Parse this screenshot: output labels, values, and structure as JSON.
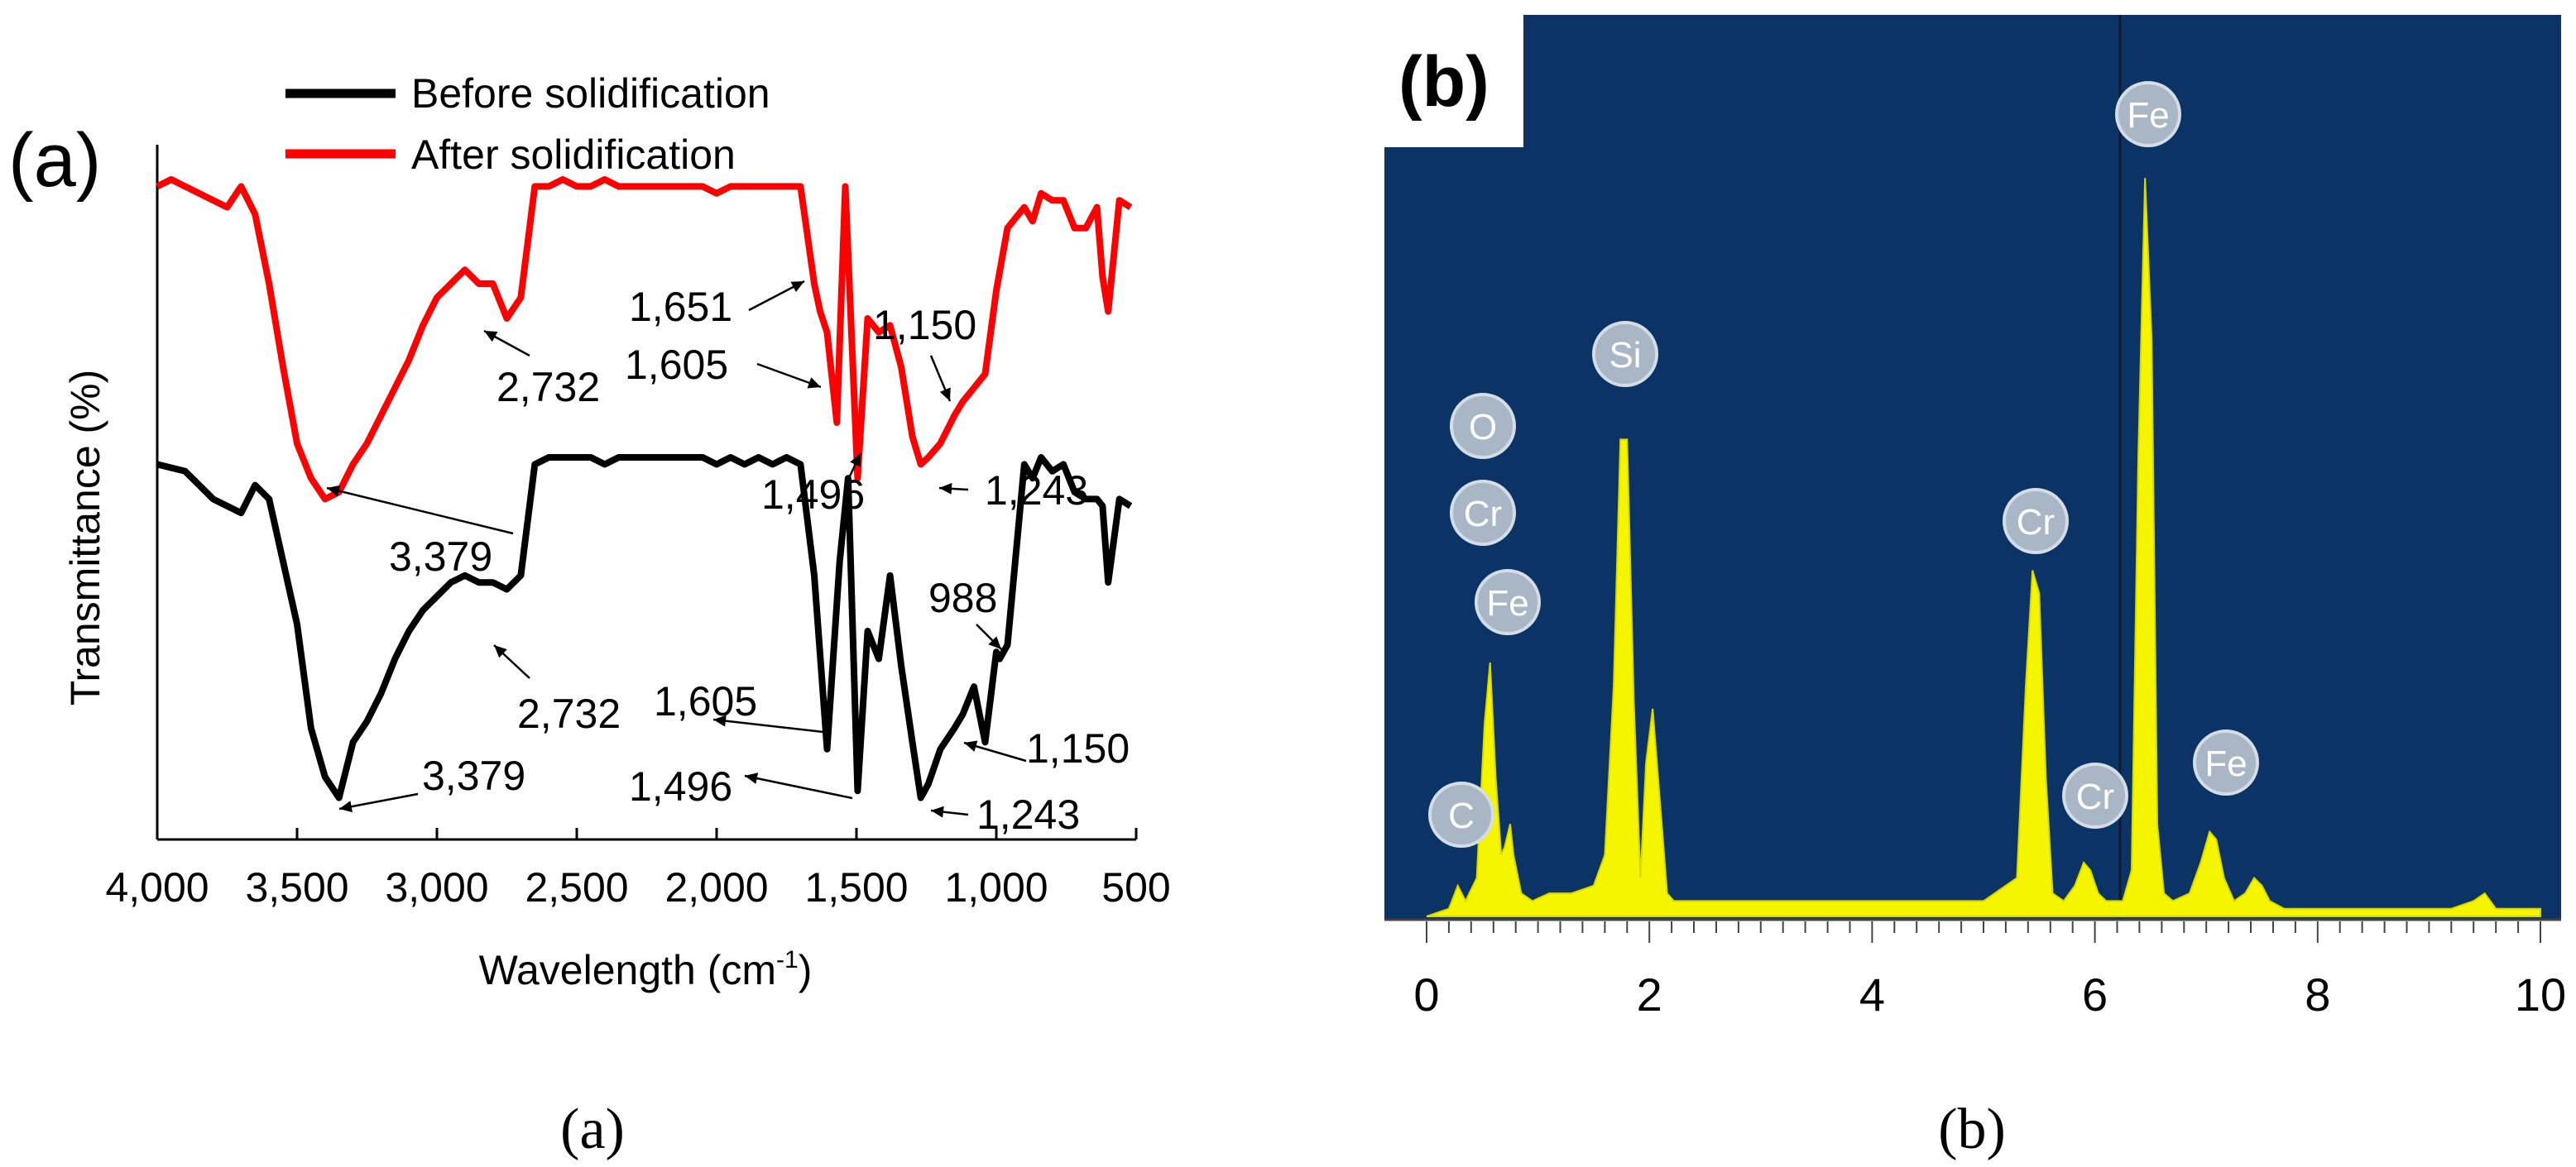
{
  "captions": [
    "(a)",
    "(b)"
  ],
  "chart_data": [
    {
      "panel_label": "(a)",
      "type": "line",
      "xlabel": "Wavelength (cm",
      "xlabel_sup": "-1",
      "xlabel_end": ")",
      "ylabel": "Transmittance (%)",
      "xlim": [
        4000,
        500
      ],
      "x_reversed": true,
      "ylim": [
        0,
        100
      ],
      "xticks": [
        4000,
        3500,
        3000,
        2500,
        2000,
        1500,
        1000,
        500
      ],
      "xtick_labels": [
        "4,000",
        "3,500",
        "3,000",
        "2,500",
        "2,000",
        "1,500",
        "1,000",
        "500"
      ],
      "legend_position": "top",
      "series": [
        {
          "name": "Before solidification",
          "color": "#000000",
          "x": [
            4000,
            3900,
            3850,
            3800,
            3750,
            3700,
            3650,
            3600,
            3550,
            3500,
            3450,
            3400,
            3350,
            3300,
            3250,
            3200,
            3150,
            3100,
            3050,
            3000,
            2950,
            2900,
            2850,
            2800,
            2750,
            2700,
            2650,
            2600,
            2550,
            2500,
            2450,
            2400,
            2350,
            2300,
            2250,
            2200,
            2150,
            2100,
            2050,
            2000,
            1950,
            1900,
            1850,
            1800,
            1750,
            1700,
            1651,
            1605,
            1560,
            1530,
            1496,
            1460,
            1420,
            1380,
            1340,
            1300,
            1270,
            1243,
            1200,
            1150,
            1120,
            1080,
            1040,
            1000,
            988,
            960,
            900,
            870,
            840,
            800,
            760,
            720,
            680,
            640,
            620,
            600,
            560,
            520
          ],
          "y": [
            54,
            53,
            51,
            49,
            48,
            47,
            51,
            49,
            40,
            31,
            16,
            9,
            6,
            14,
            17,
            21,
            26,
            30,
            33,
            35,
            37,
            38,
            37,
            37,
            36,
            38,
            54,
            55,
            55,
            55,
            55,
            54,
            55,
            55,
            55,
            55,
            55,
            55,
            55,
            54,
            55,
            54,
            55,
            54,
            55,
            54,
            38,
            13,
            40,
            52,
            7,
            30,
            26,
            38,
            25,
            14,
            6,
            8,
            13,
            16,
            18,
            22,
            14,
            27,
            26,
            28,
            54,
            52,
            55,
            53,
            54,
            50,
            49,
            49,
            48,
            37,
            49,
            48
          ]
        },
        {
          "name": "After solidification",
          "color": "#ff0000",
          "x": [
            4000,
            3950,
            3900,
            3850,
            3800,
            3750,
            3700,
            3650,
            3600,
            3550,
            3500,
            3450,
            3400,
            3350,
            3300,
            3250,
            3200,
            3150,
            3100,
            3050,
            3000,
            2950,
            2900,
            2850,
            2800,
            2750,
            2700,
            2650,
            2600,
            2550,
            2500,
            2450,
            2400,
            2350,
            2300,
            2250,
            2200,
            2150,
            2100,
            2050,
            2000,
            1950,
            1900,
            1850,
            1800,
            1750,
            1700,
            1651,
            1630,
            1605,
            1570,
            1540,
            1496,
            1460,
            1420,
            1380,
            1340,
            1300,
            1270,
            1243,
            1200,
            1150,
            1120,
            1080,
            1040,
            1000,
            960,
            900,
            870,
            840,
            800,
            760,
            720,
            680,
            640,
            620,
            600,
            560,
            520
          ],
          "y": [
            94,
            95,
            94,
            93,
            92,
            91,
            94,
            90,
            80,
            68,
            57,
            52,
            49,
            50,
            54,
            57,
            61,
            65,
            69,
            74,
            78,
            80,
            82,
            80,
            80,
            75,
            78,
            94,
            94,
            95,
            94,
            94,
            95,
            94,
            94,
            94,
            94,
            94,
            94,
            94,
            93,
            94,
            94,
            94,
            94,
            94,
            94,
            80,
            76,
            73,
            60,
            94,
            52,
            75,
            73,
            74,
            68,
            58,
            54,
            55,
            57,
            61,
            63,
            65,
            67,
            79,
            88,
            91,
            89,
            93,
            92,
            92,
            88,
            88,
            91,
            81,
            76,
            92,
            91
          ]
        }
      ],
      "annotations": [
        {
          "text": "3,379",
          "series": "After solidification"
        },
        {
          "text": "2,732",
          "series": "After solidification"
        },
        {
          "text": "1,651",
          "series": "After solidification"
        },
        {
          "text": "1,605",
          "series": "After solidification"
        },
        {
          "text": "1,150",
          "series": "After solidification"
        },
        {
          "text": "1,496",
          "series": "After solidification"
        },
        {
          "text": "1,243",
          "series": "After solidification"
        },
        {
          "text": "2,732",
          "series": "Before solidification"
        },
        {
          "text": "1,605",
          "series": "Before solidification"
        },
        {
          "text": "988",
          "series": "Before solidification"
        },
        {
          "text": "1,150",
          "series": "Before solidification"
        },
        {
          "text": "3,379",
          "series": "Before solidification"
        },
        {
          "text": "1,496",
          "series": "Before solidification"
        },
        {
          "text": "1,243",
          "series": "Before solidification"
        }
      ]
    },
    {
      "panel_label": "(b)",
      "type": "area",
      "background_color": "#0b3366",
      "fill_color": "#f5f500",
      "xlim": [
        0,
        10
      ],
      "xticks": [
        0,
        2,
        4,
        6,
        8,
        10
      ],
      "xtick_labels": [
        "0",
        "2",
        "4",
        "6",
        "8",
        "10"
      ],
      "x": [
        0.0,
        0.2,
        0.28,
        0.35,
        0.45,
        0.52,
        0.57,
        0.62,
        0.67,
        0.7,
        0.75,
        0.78,
        0.85,
        0.95,
        1.1,
        1.3,
        1.5,
        1.6,
        1.68,
        1.74,
        1.8,
        1.86,
        1.92,
        1.97,
        2.03,
        2.1,
        2.16,
        2.22,
        2.3,
        2.5,
        3.0,
        3.5,
        4.0,
        4.5,
        5.0,
        5.3,
        5.38,
        5.44,
        5.5,
        5.56,
        5.62,
        5.72,
        5.82,
        5.9,
        5.96,
        6.03,
        6.1,
        6.25,
        6.33,
        6.39,
        6.45,
        6.51,
        6.56,
        6.62,
        6.7,
        6.85,
        6.95,
        7.03,
        7.09,
        7.16,
        7.25,
        7.35,
        7.43,
        7.5,
        7.57,
        7.7,
        8.0,
        8.4,
        8.8,
        9.2,
        9.4,
        9.5,
        9.6,
        9.8,
        10.0
      ],
      "y": [
        0,
        1,
        4,
        2,
        5,
        25,
        33,
        18,
        8,
        9,
        12,
        8,
        3,
        2,
        3,
        3,
        4,
        8,
        30,
        62,
        62,
        28,
        5,
        20,
        27,
        14,
        3,
        2,
        2,
        2,
        2,
        2,
        2,
        2,
        2,
        5,
        30,
        45,
        42,
        18,
        3,
        2,
        4,
        7,
        6,
        3,
        2,
        2,
        6,
        60,
        96,
        75,
        12,
        3,
        2,
        3,
        7,
        11,
        10,
        5,
        2,
        3,
        5,
        4,
        2,
        1,
        1,
        1,
        1,
        1,
        2,
        3,
        1,
        1,
        1
      ],
      "peak_labels": [
        {
          "text": "C",
          "x": 0.28
        },
        {
          "text": "O",
          "x": 0.52
        },
        {
          "text": "Cr",
          "x": 0.52
        },
        {
          "text": "Fe",
          "x": 0.7
        },
        {
          "text": "Si",
          "x": 1.77
        },
        {
          "text": "Cr",
          "x": 5.41
        },
        {
          "text": "Cr",
          "x": 5.96
        },
        {
          "text": "Fe",
          "x": 6.39
        },
        {
          "text": "Fe",
          "x": 7.09
        }
      ]
    }
  ]
}
